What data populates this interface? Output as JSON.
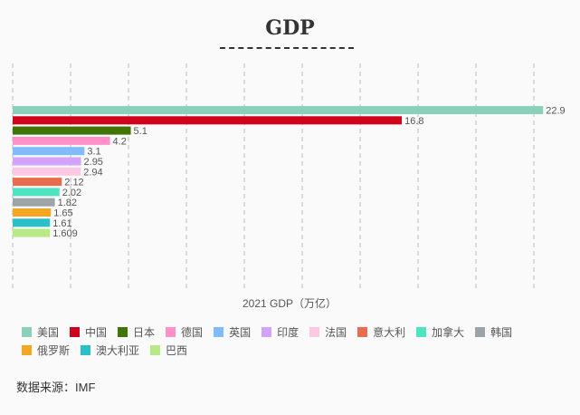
{
  "chart_data": {
    "type": "bar",
    "orientation": "horizontal",
    "title": "GDP",
    "xlabel": "2021 GDP（万亿）",
    "categories": [
      "美国",
      "中国",
      "日本",
      "德国",
      "英国",
      "印度",
      "法国",
      "意大利",
      "加拿大",
      "韩国",
      "俄罗斯",
      "澳大利亚",
      "巴西"
    ],
    "values": [
      22.9,
      16.8,
      5.1,
      4.2,
      3.1,
      2.95,
      2.94,
      2.12,
      2.02,
      1.82,
      1.65,
      1.61,
      1.609
    ],
    "labels": [
      "22.9",
      "16.8",
      "5.1",
      "4.2",
      "3.1",
      "2.95",
      "2.94",
      "2.12",
      "2.02",
      "1.82",
      "1.65",
      "1.61",
      "1.609"
    ],
    "colors": [
      "#8bd0bb",
      "#d0021b",
      "#417505",
      "#ff90c8",
      "#80bbff",
      "#d3a3ff",
      "#ffc8e4",
      "#e86c4d",
      "#50e3c2",
      "#9ba4a8",
      "#f5a623",
      "#2bbfc8",
      "#b8e986"
    ],
    "xlim": [
      0,
      22.5
    ],
    "grid_step": 2.5,
    "grid": true,
    "legend_position": "bottom"
  },
  "source": "数据来源：IMF"
}
